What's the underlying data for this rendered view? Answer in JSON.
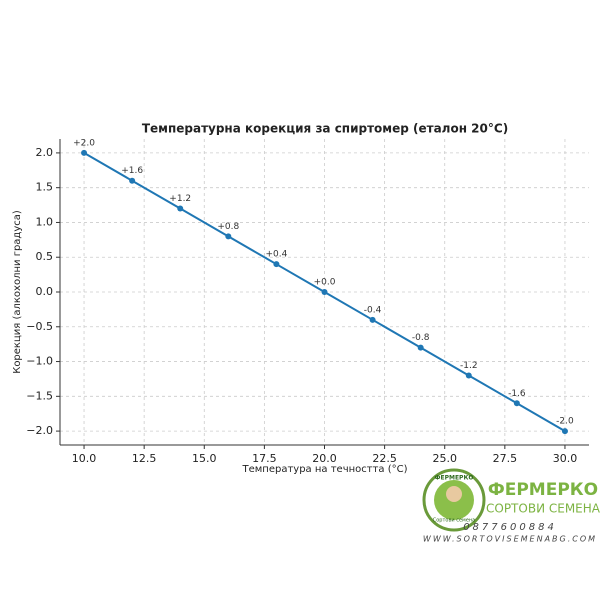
{
  "chart_data": {
    "type": "line",
    "title": "Температурна корекция за спиртомер (еталон 20°C)",
    "x_label": "Температура на течността (°C)",
    "y_label": "Корекция (алкохолни градуса)",
    "x": [
      10,
      12,
      14,
      16,
      18,
      20,
      22,
      24,
      26,
      28,
      30
    ],
    "values": [
      2.0,
      1.6,
      1.2,
      0.8,
      0.4,
      0.0,
      -0.4,
      -0.8,
      -1.2,
      -1.6,
      -2.0
    ],
    "value_labels": [
      "+2.0",
      "+1.6",
      "+1.2",
      "+0.8",
      "+0.4",
      "+0.0",
      "-0.4",
      "-0.8",
      "-1.2",
      "-1.6",
      "-2.0"
    ],
    "color": "#1f77b4",
    "xlim": [
      9,
      31
    ],
    "xticks": [
      {
        "value": 10,
        "label": "10.0"
      },
      12.5,
      {
        "value": 15,
        "label": "15.0"
      },
      17.5,
      {
        "value": 20,
        "label": "20.0"
      },
      22.5,
      {
        "value": 25,
        "label": "25.0"
      },
      27.5,
      {
        "value": 30,
        "label": "30.0"
      }
    ],
    "ylim": [
      -2.2,
      2.2
    ],
    "yticks": [
      {
        "value": -2,
        "label": "−2.0"
      },
      {
        "value": -1.5,
        "label": "−1.5"
      },
      {
        "value": -1,
        "label": "−1.0"
      },
      {
        "value": -0.5,
        "label": "−0.5"
      },
      {
        "value": 0,
        "label": "0.0"
      },
      0.5,
      {
        "value": 1,
        "label": "1.0"
      },
      1.5,
      {
        "value": 2,
        "label": "2.0"
      }
    ],
    "grid": true
  },
  "logo": {
    "badge_top": "ФЕРМЕРКО",
    "badge_bottom": "Сортови семена",
    "brand": "ФЕРМЕРКО",
    "tagline": "СОРТОВИ СЕМЕНА",
    "phone": "0877600884",
    "website": "WWW.SORTOVISEMENABG.COM"
  }
}
